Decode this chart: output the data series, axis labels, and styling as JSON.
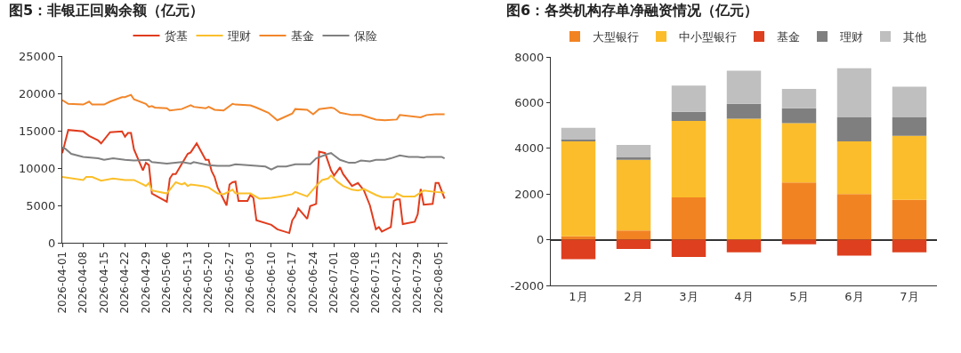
{
  "chart_data": [
    {
      "type": "line",
      "title": "图5：非银正回购余额（亿元）",
      "legend": "top",
      "line_style": "solid",
      "marker": "none",
      "xlim": [
        "2026-04-01",
        "2026-08-08"
      ],
      "ylim": [
        0,
        25000
      ],
      "yticks": [
        0,
        5000,
        10000,
        15000,
        20000,
        25000
      ],
      "xticks": [
        "2026-04-01",
        "2026-04-08",
        "2026-04-15",
        "2026-04-22",
        "2026-04-29",
        "2026-05-06",
        "2026-05-13",
        "2026-05-20",
        "2026-05-27",
        "2026-06-03",
        "2026-06-10",
        "2026-06-17",
        "2026-06-24",
        "2026-07-01",
        "2026-07-08",
        "2026-07-15",
        "2026-07-22",
        "2026-07-29",
        "2026-08-05"
      ],
      "series": [
        {
          "name": "货基",
          "color": "#e03c1e",
          "x": [
            "2026-04-01",
            "2026-04-03",
            "2026-04-08",
            "2026-04-10",
            "2026-04-13",
            "2026-04-14",
            "2026-04-17",
            "2026-04-21",
            "2026-04-22",
            "2026-04-23",
            "2026-04-24",
            "2026-04-25",
            "2026-04-28",
            "2026-04-29",
            "2026-04-30",
            "2026-05-01",
            "2026-05-06",
            "2026-05-07",
            "2026-05-08",
            "2026-05-09",
            "2026-05-13",
            "2026-05-14",
            "2026-05-16",
            "2026-05-19",
            "2026-05-20",
            "2026-05-21",
            "2026-05-22",
            "2026-05-23",
            "2026-05-26",
            "2026-05-27",
            "2026-05-28",
            "2026-05-29",
            "2026-05-30",
            "2026-06-02",
            "2026-06-03",
            "2026-06-04",
            "2026-06-05",
            "2026-06-10",
            "2026-06-12",
            "2026-06-16",
            "2026-06-17",
            "2026-06-18",
            "2026-06-19",
            "2026-06-22",
            "2026-06-23",
            "2026-06-25",
            "2026-06-26",
            "2026-06-28",
            "2026-06-30",
            "2026-07-01",
            "2026-07-03",
            "2026-07-04",
            "2026-07-07",
            "2026-07-09",
            "2026-07-11",
            "2026-07-13",
            "2026-07-15",
            "2026-07-16",
            "2026-07-17",
            "2026-07-20",
            "2026-07-21",
            "2026-07-22",
            "2026-07-23",
            "2026-07-24",
            "2026-07-28",
            "2026-07-29",
            "2026-07-30",
            "2026-07-31",
            "2026-08-03",
            "2026-08-04",
            "2026-08-05",
            "2026-08-07"
          ],
          "values": [
            12000,
            15100,
            14900,
            14300,
            13700,
            13300,
            14800,
            14900,
            14200,
            14700,
            14700,
            12500,
            9700,
            10700,
            10400,
            6600,
            5500,
            8600,
            9200,
            9200,
            11900,
            12100,
            13300,
            11100,
            11100,
            9600,
            8800,
            7400,
            5000,
            7800,
            8100,
            8200,
            5600,
            5600,
            6400,
            6000,
            3000,
            2400,
            1800,
            1300,
            3000,
            3600,
            4600,
            3200,
            4900,
            5200,
            12200,
            12000,
            9700,
            9000,
            10100,
            9200,
            7600,
            8000,
            7000,
            5000,
            1800,
            2100,
            1500,
            2100,
            5600,
            5800,
            5800,
            2500,
            2800,
            3800,
            7200,
            5100,
            5200,
            8000,
            8000,
            5900
          ]
        },
        {
          "name": "理财",
          "color": "#fbbf2a",
          "x": [
            "2026-04-01",
            "2026-04-08",
            "2026-04-09",
            "2026-04-11",
            "2026-04-14",
            "2026-04-18",
            "2026-04-22",
            "2026-04-25",
            "2026-04-28",
            "2026-04-29",
            "2026-04-30",
            "2026-05-01",
            "2026-05-06",
            "2026-05-09",
            "2026-05-11",
            "2026-05-12",
            "2026-05-13",
            "2026-05-14",
            "2026-05-18",
            "2026-05-20",
            "2026-05-23",
            "2026-05-25",
            "2026-05-28",
            "2026-05-29",
            "2026-06-03",
            "2026-06-06",
            "2026-06-10",
            "2026-06-13",
            "2026-06-17",
            "2026-06-18",
            "2026-06-22",
            "2026-06-25",
            "2026-06-27",
            "2026-06-29",
            "2026-06-30",
            "2026-07-02",
            "2026-07-04",
            "2026-07-07",
            "2026-07-09",
            "2026-07-11",
            "2026-07-15",
            "2026-07-17",
            "2026-07-21",
            "2026-07-22",
            "2026-07-24",
            "2026-07-28",
            "2026-07-31",
            "2026-08-04",
            "2026-08-07"
          ],
          "values": [
            8800,
            8400,
            8800,
            8800,
            8300,
            8600,
            8400,
            8400,
            7800,
            7600,
            8000,
            7000,
            6600,
            8100,
            7800,
            8000,
            7600,
            7800,
            7600,
            7400,
            6600,
            6500,
            7100,
            6600,
            6600,
            5900,
            6000,
            6200,
            6500,
            6800,
            6200,
            7600,
            8400,
            8600,
            9000,
            8200,
            7600,
            7100,
            7000,
            7200,
            6400,
            6100,
            6100,
            6600,
            6200,
            6200,
            7000,
            6800,
            6700
          ]
        },
        {
          "name": "基金",
          "color": "#f2862a",
          "x": [
            "2026-04-01",
            "2026-04-03",
            "2026-04-08",
            "2026-04-10",
            "2026-04-11",
            "2026-04-15",
            "2026-04-17",
            "2026-04-21",
            "2026-04-22",
            "2026-04-24",
            "2026-04-25",
            "2026-04-29",
            "2026-04-30",
            "2026-05-01",
            "2026-05-02",
            "2026-05-06",
            "2026-05-07",
            "2026-05-11",
            "2026-05-14",
            "2026-05-15",
            "2026-05-19",
            "2026-05-20",
            "2026-05-22",
            "2026-05-25",
            "2026-05-28",
            "2026-05-29",
            "2026-06-03",
            "2026-06-05",
            "2026-06-09",
            "2026-06-12",
            "2026-06-17",
            "2026-06-18",
            "2026-06-22",
            "2026-06-24",
            "2026-06-26",
            "2026-06-30",
            "2026-07-01",
            "2026-07-03",
            "2026-07-07",
            "2026-07-10",
            "2026-07-15",
            "2026-07-18",
            "2026-07-22",
            "2026-07-23",
            "2026-07-30",
            "2026-08-01",
            "2026-08-04",
            "2026-08-07"
          ],
          "values": [
            19100,
            18600,
            18500,
            18900,
            18500,
            18500,
            18900,
            19500,
            19500,
            19800,
            19200,
            18600,
            18200,
            18300,
            18100,
            18000,
            17700,
            17900,
            18400,
            18200,
            18000,
            18200,
            17800,
            17700,
            18600,
            18500,
            18400,
            18100,
            17400,
            16400,
            17300,
            17900,
            17800,
            17200,
            17900,
            18100,
            18000,
            17400,
            17100,
            17100,
            16500,
            16400,
            16500,
            17100,
            16800,
            17100,
            17200,
            17200
          ]
        },
        {
          "name": "保险",
          "color": "#808080",
          "x": [
            "2026-04-01",
            "2026-04-02",
            "2026-04-04",
            "2026-04-08",
            "2026-04-13",
            "2026-04-15",
            "2026-04-18",
            "2026-04-22",
            "2026-04-25",
            "2026-04-30",
            "2026-05-01",
            "2026-05-06",
            "2026-05-11",
            "2026-05-14",
            "2026-05-15",
            "2026-05-20",
            "2026-05-23",
            "2026-05-27",
            "2026-05-29",
            "2026-06-02",
            "2026-06-08",
            "2026-06-10",
            "2026-06-12",
            "2026-06-15",
            "2026-06-18",
            "2026-06-23",
            "2026-06-25",
            "2026-06-29",
            "2026-06-30",
            "2026-07-01",
            "2026-07-03",
            "2026-07-06",
            "2026-07-08",
            "2026-07-10",
            "2026-07-13",
            "2026-07-15",
            "2026-07-18",
            "2026-07-20",
            "2026-07-23",
            "2026-07-26",
            "2026-07-29",
            "2026-07-31",
            "2026-08-01",
            "2026-08-06",
            "2026-08-07"
          ],
          "values": [
            12700,
            12600,
            11900,
            11500,
            11300,
            11100,
            11300,
            11100,
            11000,
            11100,
            10800,
            10600,
            10800,
            10600,
            10800,
            10400,
            10300,
            10300,
            10500,
            10400,
            10200,
            9800,
            10200,
            10200,
            10500,
            10500,
            11300,
            11900,
            12000,
            11700,
            11100,
            10700,
            10700,
            11000,
            10900,
            11100,
            11100,
            11300,
            11700,
            11500,
            11500,
            11400,
            11500,
            11500,
            11300
          ]
        }
      ]
    },
    {
      "type": "bar",
      "title": "图6：各类机构存单净融资情况（亿元）",
      "legend": "top",
      "stacked": true,
      "categories": [
        "1月",
        "2月",
        "3月",
        "4月",
        "5月",
        "6月",
        "7月"
      ],
      "ylim": [
        -2000,
        8000
      ],
      "yticks": [
        -2000,
        0,
        2000,
        4000,
        6000,
        8000
      ],
      "series": [
        {
          "name": "大型银行",
          "color": "#f28323",
          "values": [
            150,
            400,
            1850,
            null,
            2500,
            2000,
            1750
          ]
        },
        {
          "name": "中小型银行",
          "color": "#fbbd2c",
          "values": [
            4150,
            3100,
            3350,
            5300,
            2600,
            2300,
            2800
          ]
        },
        {
          "name": "基金",
          "color": "#de3f1e",
          "values": [
            -850,
            -400,
            -750,
            -550,
            -200,
            -700,
            -550
          ]
        },
        {
          "name": "理财",
          "color": "#7f7f7f",
          "values": [
            100,
            100,
            400,
            650,
            650,
            1050,
            800
          ]
        },
        {
          "name": "其他",
          "color": "#bfbfbf",
          "values": [
            500,
            550,
            1150,
            1450,
            850,
            2150,
            1350
          ]
        }
      ]
    }
  ]
}
